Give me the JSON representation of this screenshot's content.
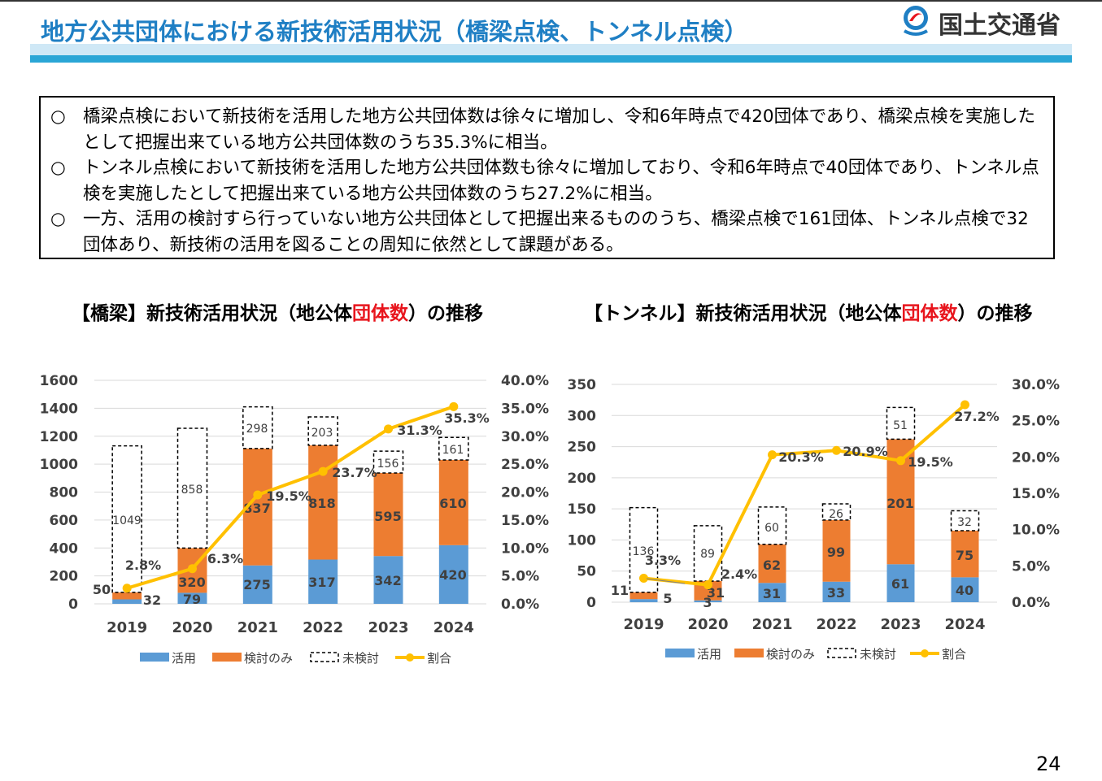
{
  "header": {
    "title": "地方公共団体における新技術活用状況（橋梁点検、トンネル点検）",
    "ministry": "国土交通省"
  },
  "summary": {
    "bullet_mark": "○",
    "bullets": [
      "橋梁点検において新技術を活用した地方公共団体数は徐々に増加し、令和6年時点で420団体であり、橋梁点検を実施したとして把握出来ている地方公共団体数のうち35.3%に相当。",
      "トンネル点検において新技術を活用した地方公共団体数も徐々に増加しており、令和6年時点で40団体であり、トンネル点検を実施したとして把握出来ている地方公共団体数のうち27.2%に相当。",
      "一方、活用の検討すら行っていない地方公共団体として把握出来るもののうち、橋梁点検で161団体、トンネル点検で32団体あり、新技術の活用を図ることの周知に依然として課題がある。"
    ]
  },
  "colors": {
    "katsuyou": "#5b9bd5",
    "kentou": "#ed7d31",
    "line": "#ffc000",
    "accent": "#1f7fc4",
    "red": "#e8151d"
  },
  "chart_data": [
    {
      "type": "bar",
      "title_pre": "【橋梁】新技術活用状況（地公体",
      "title_red": "団体数",
      "title_post": "）の推移",
      "categories": [
        "2019",
        "2020",
        "2021",
        "2022",
        "2023",
        "2024"
      ],
      "series": [
        {
          "name": "活用",
          "values": [
            32,
            79,
            275,
            317,
            342,
            420
          ],
          "labels": [
            "32",
            "79",
            "275",
            "317",
            "342",
            "420"
          ]
        },
        {
          "name": "検討のみ",
          "values": [
            50,
            320,
            837,
            818,
            595,
            610
          ],
          "labels": [
            "50",
            "320",
            "837",
            "818",
            "595",
            "610"
          ]
        },
        {
          "name": "未検討",
          "values": [
            1049,
            858,
            298,
            203,
            156,
            161
          ],
          "labels": [
            "1049",
            "858",
            "298",
            "203",
            "156",
            "161"
          ]
        },
        {
          "name": "割合",
          "values": [
            2.8,
            6.3,
            19.5,
            23.7,
            31.3,
            35.3
          ],
          "labels": [
            "2.8%",
            "6.3%",
            "19.5%",
            "23.7%",
            "31.3%",
            "35.3%"
          ]
        }
      ],
      "ylim": [
        0,
        1600
      ],
      "y_ticks": [
        "0",
        "200",
        "400",
        "600",
        "800",
        "1000",
        "1200",
        "1400",
        "1600"
      ],
      "y2lim": [
        0,
        40
      ],
      "y2_ticks": [
        "0.0%",
        "5.0%",
        "10.0%",
        "15.0%",
        "20.0%",
        "25.0%",
        "30.0%",
        "35.0%",
        "40.0%"
      ],
      "legend": [
        "活用",
        "検討のみ",
        "未検討",
        "割合"
      ]
    },
    {
      "type": "bar",
      "title_pre": "【トンネル】新技術活用状況（地公体",
      "title_red": "団体数",
      "title_post": "）の推移",
      "categories": [
        "2019",
        "2020",
        "2021",
        "2022",
        "2023",
        "2024"
      ],
      "series": [
        {
          "name": "活用",
          "values": [
            5,
            3,
            31,
            33,
            61,
            40
          ],
          "labels": [
            "5",
            "3",
            "31",
            "33",
            "61",
            "40"
          ]
        },
        {
          "name": "検討のみ",
          "values": [
            11,
            31,
            62,
            99,
            201,
            75
          ],
          "labels": [
            "11",
            "31",
            "62",
            "99",
            "201",
            "75"
          ]
        },
        {
          "name": "未検討",
          "values": [
            136,
            89,
            60,
            26,
            51,
            32
          ],
          "labels": [
            "136",
            "89",
            "60",
            "26",
            "51",
            "32"
          ]
        },
        {
          "name": "割合",
          "values": [
            3.3,
            2.4,
            20.3,
            20.9,
            19.5,
            27.2
          ],
          "labels": [
            "3.3%",
            "2.4%",
            "20.3%",
            "20.9%",
            "19.5%",
            "27.2%"
          ]
        }
      ],
      "ylim": [
        0,
        350
      ],
      "y_ticks": [
        "0",
        "50",
        "100",
        "150",
        "200",
        "250",
        "300",
        "350"
      ],
      "y2lim": [
        0,
        30
      ],
      "y2_ticks": [
        "0.0%",
        "5.0%",
        "10.0%",
        "15.0%",
        "20.0%",
        "25.0%",
        "30.0%"
      ],
      "legend": [
        "活用",
        "検討のみ",
        "未検討",
        "割合"
      ]
    }
  ],
  "page_number": "24"
}
